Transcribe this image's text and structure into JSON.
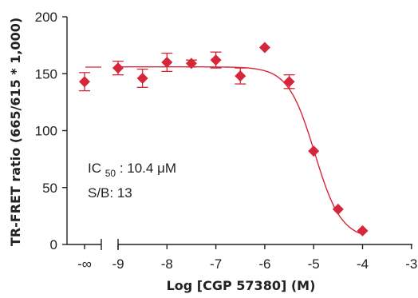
{
  "chart_data": {
    "type": "scatter",
    "xlabel": "Log [CGP 57380] (M)",
    "ylabel": "TR-FRET ratio (665/615 * 1,000)",
    "xlim": [
      -10.5,
      -3
    ],
    "ylim": [
      0,
      200
    ],
    "x_tick_labels": [
      "-∞",
      "-9",
      "-8",
      "-7",
      "-6",
      "-5",
      "-4",
      "-3"
    ],
    "x_tick_values": [
      -10,
      -9,
      -8,
      -7,
      -6,
      -5,
      -4,
      -3
    ],
    "y_tick_labels": [
      "0",
      "50",
      "100",
      "150",
      "200"
    ],
    "y_tick_values": [
      0,
      50,
      100,
      150,
      200
    ],
    "axis_break": true,
    "grid": false,
    "marker_color": "#d62639",
    "curve_color": "#d62639",
    "series": [
      {
        "marker": "diamond",
        "points": [
          {
            "x": "-∞",
            "y": 143,
            "err": 8
          },
          {
            "x": -9,
            "y": 155,
            "err": 6
          },
          {
            "x": -8.5,
            "y": 146,
            "err": 8
          },
          {
            "x": -8,
            "y": 160,
            "err": 8
          },
          {
            "x": -7.5,
            "y": 159,
            "err": 3
          },
          {
            "x": -7,
            "y": 162,
            "err": 7
          },
          {
            "x": -6.5,
            "y": 148,
            "err": 7
          },
          {
            "x": -6,
            "y": 173,
            "err": 0
          },
          {
            "x": -5.5,
            "y": 143,
            "err": 6
          },
          {
            "x": -5,
            "y": 82,
            "err": 0
          },
          {
            "x": -4.5,
            "y": 31,
            "err": 0
          },
          {
            "x": -4,
            "y": 12,
            "err": 0
          }
        ]
      }
    ],
    "fit": {
      "top": 156,
      "bottom": 5,
      "log_ic50": -4.98,
      "hill": 1.6
    },
    "annotation": {
      "ic50_prefix": "IC",
      "ic50_sub": "50",
      "ic50_value": ": 10.4 μM",
      "sb_text": "S/B: 13"
    }
  }
}
